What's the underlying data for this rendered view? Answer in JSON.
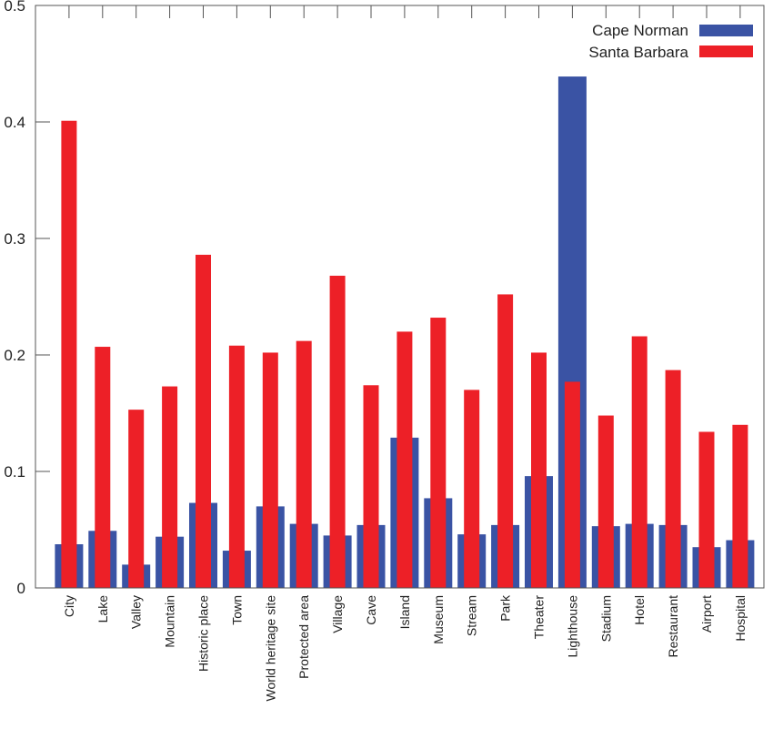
{
  "chart_data": {
    "type": "bar",
    "title": "",
    "xlabel": "",
    "ylabel": "",
    "ylim": [
      0,
      0.5
    ],
    "yticks": [
      "0",
      "0.1",
      "0.2",
      "0.3",
      "0.4",
      "0.5"
    ],
    "grid": false,
    "legend_position": "top-right",
    "categories": [
      "City",
      "Lake",
      "Valley",
      "Mountain",
      "Historic place",
      "Town",
      "World heritage site",
      "Protected area",
      "Village",
      "Cave",
      "Island",
      "Museum",
      "Stream",
      "Park",
      "Theater",
      "Lighthouse",
      "Stadium",
      "Hotel",
      "Restaurant",
      "Airport",
      "Hospital"
    ],
    "series": [
      {
        "name": "Cape Norman",
        "color": "#3a53a4",
        "values": [
          0.0375,
          0.049,
          0.02,
          0.044,
          0.073,
          0.032,
          0.07,
          0.055,
          0.045,
          0.054,
          0.129,
          0.077,
          0.046,
          0.054,
          0.096,
          0.439,
          0.053,
          0.055,
          0.054,
          0.035,
          0.041
        ]
      },
      {
        "name": "Santa Barbara",
        "color": "#ed2027",
        "values": [
          0.401,
          0.207,
          0.153,
          0.173,
          0.286,
          0.208,
          0.202,
          0.212,
          0.268,
          0.174,
          0.22,
          0.232,
          0.17,
          0.252,
          0.202,
          0.177,
          0.148,
          0.216,
          0.187,
          0.134,
          0.14
        ]
      }
    ]
  }
}
